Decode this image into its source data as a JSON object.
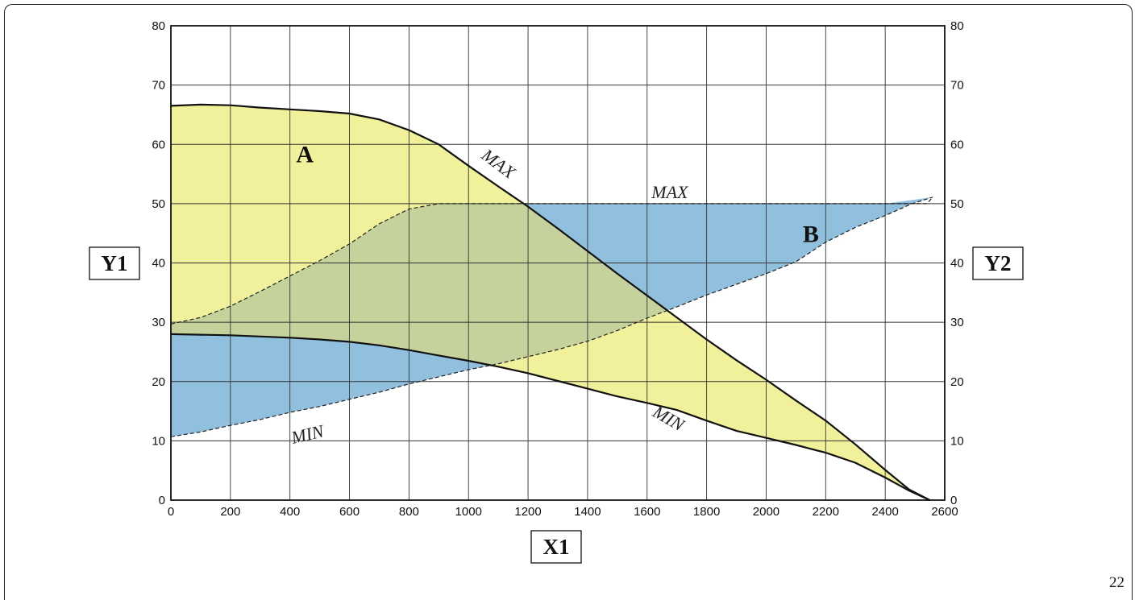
{
  "page_number": "22",
  "chart_data": {
    "type": "area",
    "xlabel": "X1",
    "ylabel_left": "Y1",
    "ylabel_right": "Y2",
    "xlim": [
      0,
      2600
    ],
    "ylim": [
      0,
      80
    ],
    "x_ticks": [
      0,
      200,
      400,
      600,
      800,
      1000,
      1200,
      1400,
      1600,
      1800,
      2000,
      2200,
      2400,
      2600
    ],
    "y_ticks": [
      0,
      10,
      20,
      30,
      40,
      50,
      60,
      70,
      80
    ],
    "grid": true,
    "series": [
      {
        "name": "A",
        "color": "#f2f19b",
        "upper": [
          [
            0,
            66.5
          ],
          [
            100,
            66.7
          ],
          [
            200,
            66.6
          ],
          [
            300,
            66.2
          ],
          [
            400,
            65.9
          ],
          [
            500,
            65.6
          ],
          [
            600,
            65.2
          ],
          [
            700,
            64.2
          ],
          [
            800,
            62.4
          ],
          [
            900,
            60
          ],
          [
            1000,
            56.4
          ],
          [
            1100,
            52.9
          ],
          [
            1200,
            49.5
          ],
          [
            1300,
            45.8
          ],
          [
            1400,
            42
          ],
          [
            1500,
            38.2
          ],
          [
            1600,
            34.5
          ],
          [
            1700,
            30.8
          ],
          [
            1800,
            27.1
          ],
          [
            1900,
            23.6
          ],
          [
            2000,
            20.3
          ],
          [
            2100,
            16.8
          ],
          [
            2200,
            13.4
          ],
          [
            2300,
            9.4
          ],
          [
            2400,
            5.1
          ],
          [
            2480,
            1.8
          ],
          [
            2550,
            0
          ]
        ],
        "lower": [
          [
            0,
            28
          ],
          [
            100,
            27.9
          ],
          [
            200,
            27.8
          ],
          [
            300,
            27.6
          ],
          [
            400,
            27.4
          ],
          [
            500,
            27.1
          ],
          [
            600,
            26.7
          ],
          [
            700,
            26.1
          ],
          [
            800,
            25.3
          ],
          [
            900,
            24.4
          ],
          [
            1000,
            23.5
          ],
          [
            1100,
            22.5
          ],
          [
            1200,
            21.4
          ],
          [
            1300,
            20.1
          ],
          [
            1400,
            18.8
          ],
          [
            1500,
            17.5
          ],
          [
            1600,
            16.4
          ],
          [
            1700,
            15.2
          ],
          [
            1800,
            13.4
          ],
          [
            1900,
            11.7
          ],
          [
            2000,
            10.5
          ],
          [
            2100,
            9.3
          ],
          [
            2200,
            8
          ],
          [
            2300,
            6.3
          ],
          [
            2400,
            3.8
          ],
          [
            2480,
            1.6
          ],
          [
            2550,
            0
          ]
        ],
        "upper_label": "MAX",
        "lower_label": "MIN"
      },
      {
        "name": "B",
        "color": "#91c0df",
        "upper": [
          [
            0,
            28
          ],
          [
            200,
            27.8
          ],
          [
            400,
            27.4
          ],
          [
            600,
            26.7
          ],
          [
            800,
            25.3
          ],
          [
            1000,
            23.5
          ],
          [
            1100,
            22.5
          ],
          [
            1200,
            50
          ],
          [
            1400,
            50
          ],
          [
            1600,
            50
          ],
          [
            1800,
            50
          ],
          [
            2000,
            50
          ],
          [
            2200,
            50
          ],
          [
            2400,
            50
          ],
          [
            2490,
            50
          ]
        ],
        "lower": [
          [
            0,
            10.7
          ],
          [
            100,
            11.5
          ],
          [
            200,
            12.6
          ],
          [
            300,
            13.6
          ],
          [
            400,
            14.8
          ],
          [
            500,
            15.8
          ],
          [
            600,
            17
          ],
          [
            700,
            18.2
          ],
          [
            800,
            19.6
          ],
          [
            900,
            20.8
          ],
          [
            1000,
            22
          ],
          [
            1100,
            23
          ],
          [
            1200,
            24.2
          ],
          [
            1300,
            25.4
          ],
          [
            1400,
            26.8
          ],
          [
            1500,
            28.6
          ],
          [
            1600,
            30.7
          ],
          [
            1700,
            32.6
          ],
          [
            1800,
            34.6
          ],
          [
            1900,
            36.4
          ],
          [
            2000,
            38.2
          ],
          [
            2100,
            40.2
          ],
          [
            2200,
            43.5
          ],
          [
            2300,
            46
          ],
          [
            2400,
            48
          ],
          [
            2490,
            50
          ]
        ],
        "upper_label": "MAX",
        "lower_label": "MIN"
      }
    ],
    "boundaries": {
      "b_max": [
        [
          0,
          29.7
        ],
        [
          100,
          30.8
        ],
        [
          200,
          32.7
        ],
        [
          300,
          35.2
        ],
        [
          400,
          37.8
        ],
        [
          500,
          40.4
        ],
        [
          600,
          43.2
        ],
        [
          700,
          46.6
        ],
        [
          800,
          49.1
        ],
        [
          900,
          50
        ],
        [
          1000,
          50
        ],
        [
          1200,
          50
        ],
        [
          1400,
          50
        ],
        [
          1600,
          50
        ],
        [
          1800,
          50
        ],
        [
          2000,
          50
        ],
        [
          2200,
          50
        ],
        [
          2400,
          50
        ],
        [
          2540,
          50
        ],
        [
          2560,
          51.1
        ]
      ],
      "b_min": [
        [
          0,
          10.7
        ],
        [
          100,
          11.5
        ],
        [
          200,
          12.6
        ],
        [
          300,
          13.6
        ],
        [
          400,
          14.8
        ],
        [
          500,
          15.8
        ],
        [
          600,
          17
        ],
        [
          700,
          18.2
        ],
        [
          800,
          19.6
        ],
        [
          900,
          20.8
        ],
        [
          1000,
          22
        ],
        [
          1100,
          23
        ],
        [
          1200,
          24.2
        ],
        [
          1300,
          25.4
        ],
        [
          1400,
          26.8
        ],
        [
          1500,
          28.6
        ],
        [
          1600,
          30.7
        ],
        [
          1700,
          32.6
        ],
        [
          1800,
          34.6
        ],
        [
          1900,
          36.4
        ],
        [
          2000,
          38.2
        ],
        [
          2100,
          40.2
        ],
        [
          2200,
          43.5
        ],
        [
          2300,
          46
        ],
        [
          2400,
          48
        ],
        [
          2490,
          50
        ],
        [
          2560,
          51.1
        ]
      ]
    },
    "annotations": {
      "a_label": "A",
      "b_label": "B",
      "a_max_label": "MAX",
      "a_min_label": "MIN",
      "b_max_label": "MAX",
      "b_min_label": "MIN"
    }
  }
}
